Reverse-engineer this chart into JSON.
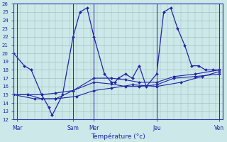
{
  "xlabel": "Température (°c)",
  "background_color": "#cce8e8",
  "line_color": "#2222aa",
  "grid_color": "#99bbbb",
  "ylim": [
    12,
    26
  ],
  "xlim": [
    0,
    30
  ],
  "x_day_labels": [
    "Mar",
    "Sam",
    "Mer",
    "Jeu",
    "Ven"
  ],
  "x_day_positions": [
    0.5,
    8.5,
    11.5,
    20.5,
    29.5
  ],
  "x_vlines": [
    0.5,
    8.5,
    11.5,
    20.5,
    29.5
  ],
  "line1_x": [
    0,
    1.5,
    2.5,
    4,
    5,
    5.5,
    7,
    8.5,
    9.5,
    10.5,
    11.5,
    13,
    14,
    14.5,
    15,
    16,
    17,
    18,
    19,
    20.5,
    21.5,
    22.5,
    23.5,
    24.5,
    25.5,
    26.5,
    27.5,
    28.5,
    29.5
  ],
  "line1_y": [
    20,
    18.5,
    18,
    15,
    13.5,
    12.5,
    15,
    22,
    25,
    25.5,
    22,
    17.5,
    16.5,
    16.5,
    17,
    17.5,
    17,
    18.5,
    16,
    17.5,
    25,
    25.5,
    23,
    21,
    18.5,
    18.5,
    18,
    18,
    18
  ],
  "line2_x": [
    0,
    2,
    4,
    6,
    8.5,
    11.5,
    14,
    16,
    18,
    20.5,
    23,
    26,
    29.5
  ],
  "line2_y": [
    15,
    15,
    15,
    15.2,
    15.5,
    17,
    17,
    16.8,
    16.5,
    16.5,
    17.2,
    17.5,
    18
  ],
  "line3_x": [
    0,
    2,
    4,
    6,
    8.5,
    11.5,
    14,
    16,
    18,
    20.5,
    23,
    26,
    29.5
  ],
  "line3_y": [
    15,
    15,
    14.5,
    14.5,
    15.5,
    16.5,
    16.3,
    16,
    16,
    16.2,
    17,
    17.2,
    17.5
  ],
  "line4_x": [
    0,
    3,
    6,
    9,
    11.5,
    14,
    17,
    20.5,
    24,
    27,
    29.5
  ],
  "line4_y": [
    15,
    14.5,
    14.5,
    14.8,
    15.5,
    15.8,
    16.2,
    16,
    16.5,
    17.2,
    17.8
  ]
}
